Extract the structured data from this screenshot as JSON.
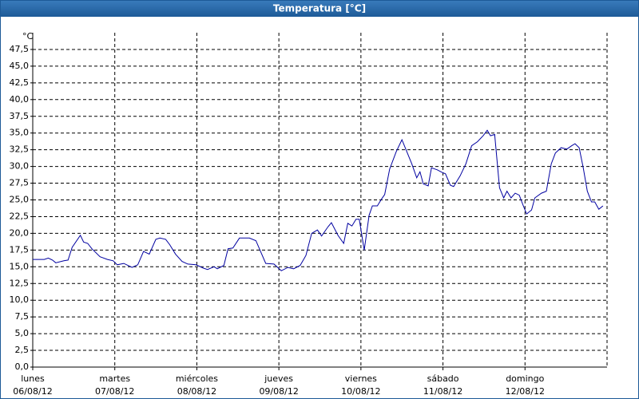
{
  "chart_data": {
    "type": "line",
    "title": "Temperatura [°C]",
    "y_unit": "°C",
    "xlim": [
      0,
      7
    ],
    "xticks": [
      {
        "value": 0,
        "label": [
          "lunes",
          "06/08/12"
        ]
      },
      {
        "value": 1,
        "label": [
          "martes",
          "07/08/12"
        ]
      },
      {
        "value": 2,
        "label": [
          "miércoles",
          "08/08/12"
        ]
      },
      {
        "value": 3,
        "label": [
          "jueves",
          "09/08/12"
        ]
      },
      {
        "value": 4,
        "label": [
          "viernes",
          "10/08/12"
        ]
      },
      {
        "value": 5,
        "label": [
          "sábado",
          "11/08/12"
        ]
      },
      {
        "value": 6,
        "label": [
          "domingo",
          "12/08/12"
        ]
      }
    ],
    "ylim": [
      0,
      50
    ],
    "yticks": [
      {
        "value": 0,
        "label": "0,0"
      },
      {
        "value": 2.5,
        "label": "2,5"
      },
      {
        "value": 5,
        "label": "5,0"
      },
      {
        "value": 7.5,
        "label": "7,5"
      },
      {
        "value": 10,
        "label": "10,0"
      },
      {
        "value": 12.5,
        "label": "12,5"
      },
      {
        "value": 15,
        "label": "15,0"
      },
      {
        "value": 17.5,
        "label": "17,5"
      },
      {
        "value": 20,
        "label": "20,0"
      },
      {
        "value": 22.5,
        "label": "22,5"
      },
      {
        "value": 25,
        "label": "25,0"
      },
      {
        "value": 27.5,
        "label": "27,5"
      },
      {
        "value": 30,
        "label": "30,0"
      },
      {
        "value": 32.5,
        "label": "32,5"
      },
      {
        "value": 35,
        "label": "35,0"
      },
      {
        "value": 37.5,
        "label": "37,5"
      },
      {
        "value": 40,
        "label": "40,0"
      },
      {
        "value": 42.5,
        "label": "42,5"
      },
      {
        "value": 45,
        "label": "45,0"
      },
      {
        "value": 47.5,
        "label": "47,5"
      }
    ],
    "grid": true,
    "series": [
      {
        "color": "#0000a0",
        "x": [
          0,
          0.14,
          0.19,
          0.24,
          0.28,
          0.38,
          0.43,
          0.48,
          0.58,
          0.62,
          0.67,
          0.72,
          0.82,
          0.91,
          0.98,
          1.03,
          1.11,
          1.21,
          1.28,
          1.35,
          1.42,
          1.5,
          1.55,
          1.62,
          1.67,
          1.74,
          1.82,
          1.89,
          1.99,
          2.08,
          2.13,
          2.21,
          2.25,
          2.33,
          2.38,
          2.44,
          2.52,
          2.64,
          2.72,
          2.77,
          2.84,
          2.94,
          3.03,
          3.11,
          3.18,
          3.26,
          3.33,
          3.4,
          3.47,
          3.52,
          3.6,
          3.64,
          3.72,
          3.79,
          3.84,
          3.89,
          3.94,
          3.98,
          4.04,
          4.1,
          4.14,
          4.2,
          4.25,
          4.29,
          4.35,
          4.43,
          4.5,
          4.57,
          4.62,
          4.68,
          4.72,
          4.76,
          4.82,
          4.86,
          4.93,
          4.99,
          5.03,
          5.09,
          5.13,
          5.21,
          5.28,
          5.35,
          5.42,
          5.49,
          5.54,
          5.58,
          5.63,
          5.69,
          5.74,
          5.78,
          5.83,
          5.88,
          5.93,
          5.98,
          6.02,
          6.08,
          6.12,
          6.2,
          6.26,
          6.32,
          6.37,
          6.44,
          6.51,
          6.57,
          6.61,
          6.66,
          6.71,
          6.76,
          6.81,
          6.85,
          6.9,
          6.95
        ],
        "values": [
          16.1,
          16.1,
          16.3,
          16.0,
          15.6,
          15.9,
          16.0,
          17.9,
          19.7,
          18.7,
          18.5,
          17.7,
          16.5,
          16.1,
          15.9,
          15.3,
          15.5,
          14.9,
          15.3,
          17.3,
          16.9,
          19.1,
          19.3,
          19.1,
          18.3,
          16.9,
          15.8,
          15.4,
          15.3,
          14.8,
          14.6,
          15.0,
          14.7,
          15.2,
          17.7,
          17.8,
          19.3,
          19.3,
          18.9,
          17.5,
          15.5,
          15.4,
          14.4,
          14.9,
          14.7,
          15.2,
          16.7,
          20.0,
          20.5,
          19.6,
          21.0,
          21.6,
          19.7,
          18.5,
          21.5,
          21.1,
          22.1,
          22.1,
          17.5,
          22.7,
          24.1,
          24.1,
          25.1,
          25.8,
          29.6,
          32.2,
          34.0,
          31.9,
          30.4,
          28.3,
          29.2,
          27.4,
          27.1,
          29.8,
          29.5,
          29.1,
          28.9,
          27.2,
          27.0,
          28.6,
          30.4,
          33.1,
          33.7,
          34.6,
          35.4,
          34.6,
          34.8,
          26.8,
          25.3,
          26.3,
          25.3,
          26.0,
          25.7,
          24.1,
          22.9,
          23.5,
          25.3,
          26.0,
          26.3,
          30.4,
          32.0,
          32.8,
          32.6,
          33.1,
          33.4,
          32.8,
          29.8,
          26.3,
          24.7,
          24.7,
          23.6,
          24.1
        ]
      }
    ]
  }
}
